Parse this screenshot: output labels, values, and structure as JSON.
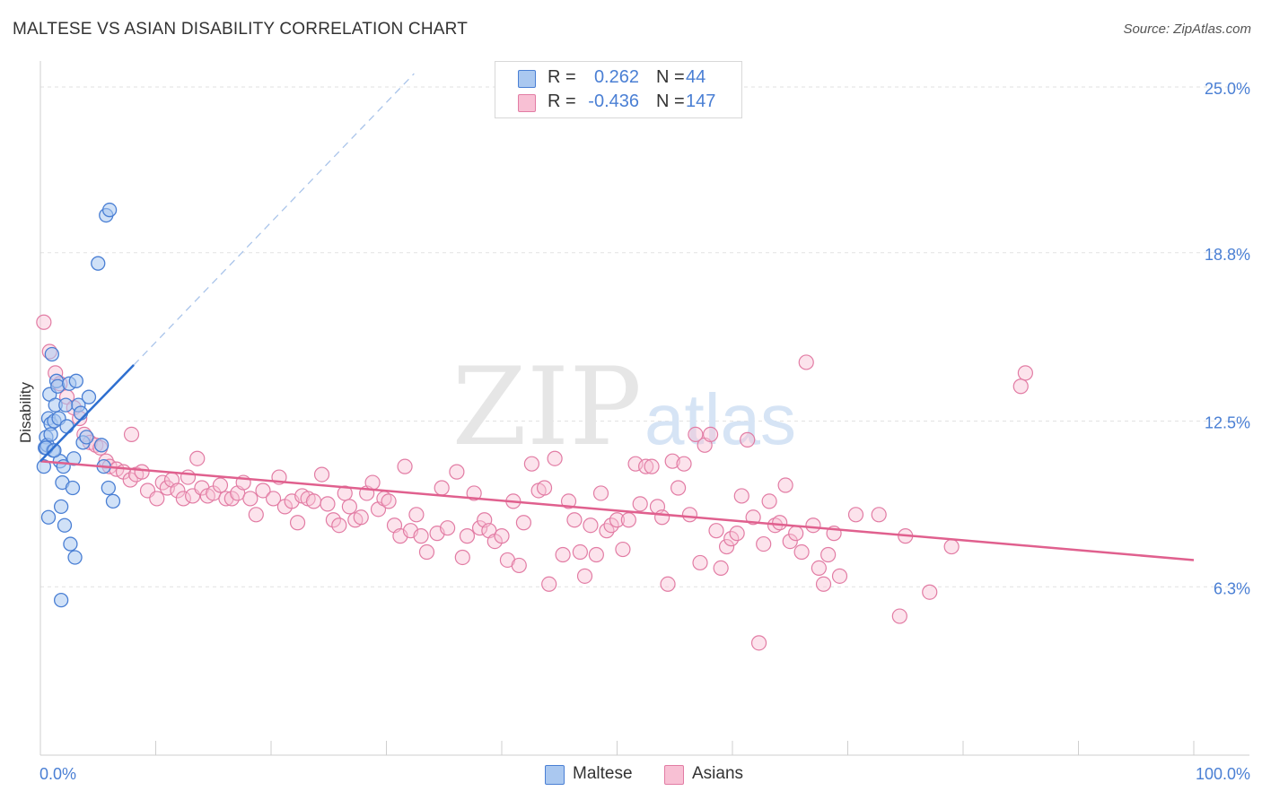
{
  "title": "MALTESE VS ASIAN DISABILITY CORRELATION CHART",
  "source": "Source: ZipAtlas.com",
  "watermark": {
    "zip": "ZIP",
    "atlas": "atlas"
  },
  "legend": {
    "rows": [
      {
        "r_label": "R =",
        "r_value": "0.262",
        "n_label": "N =",
        "n_value": "44",
        "color": "#aac8f0",
        "border": "#4a7fd4"
      },
      {
        "r_label": "R =",
        "r_value": "-0.436",
        "n_label": "N =",
        "n_value": "147",
        "color": "#f8c0d4",
        "border": "#e27ca4"
      }
    ]
  },
  "bottom_legend": {
    "maltese": "Maltese",
    "asians": "Asians"
  },
  "colors": {
    "maltese_fill": "#aac8f0",
    "maltese_stroke": "#4a7fd4",
    "asian_fill": "#f8c0d4",
    "asian_stroke": "#e27ca4",
    "maltese_line": "#2e6fd0",
    "asian_line": "#e0608e",
    "tick_text": "#4a7fd4"
  },
  "chart_data": {
    "type": "scatter",
    "title": "MALTESE VS ASIAN DISABILITY CORRELATION CHART",
    "xlabel": "",
    "ylabel": "Disability",
    "xlim": [
      0,
      100
    ],
    "ylim": [
      0,
      25.5
    ],
    "x_tick_labels": [
      "0.0%",
      "100.0%"
    ],
    "y_ticks": [
      {
        "value": 6.3,
        "label": "6.3%"
      },
      {
        "value": 12.5,
        "label": "12.5%"
      },
      {
        "value": 18.8,
        "label": "18.8%"
      },
      {
        "value": 25.0,
        "label": "25.0%"
      }
    ],
    "series": [
      {
        "name": "Maltese",
        "r": 0.262,
        "n": 44,
        "trend": {
          "x0": 0,
          "y0": 11.0,
          "x1": 8.1,
          "y1": 14.6,
          "dash_to_x": 32.4,
          "dash_to_y": 25.5
        },
        "points": [
          [
            0.3,
            10.8
          ],
          [
            0.4,
            11.5
          ],
          [
            0.5,
            11.9
          ],
          [
            0.6,
            11.6
          ],
          [
            0.7,
            12.6
          ],
          [
            0.8,
            13.5
          ],
          [
            0.9,
            12.4
          ],
          [
            1.0,
            15.0
          ],
          [
            1.1,
            11.4
          ],
          [
            1.2,
            12.5
          ],
          [
            1.3,
            13.1
          ],
          [
            1.4,
            14.0
          ],
          [
            1.5,
            13.8
          ],
          [
            1.6,
            12.6
          ],
          [
            1.7,
            11.0
          ],
          [
            1.8,
            9.3
          ],
          [
            1.9,
            10.2
          ],
          [
            2.0,
            10.8
          ],
          [
            2.1,
            8.6
          ],
          [
            2.2,
            13.1
          ],
          [
            2.3,
            12.3
          ],
          [
            2.5,
            13.9
          ],
          [
            2.6,
            7.9
          ],
          [
            2.8,
            10.0
          ],
          [
            2.9,
            11.1
          ],
          [
            3.0,
            7.4
          ],
          [
            3.1,
            14.0
          ],
          [
            3.3,
            13.1
          ],
          [
            3.5,
            12.8
          ],
          [
            3.7,
            11.7
          ],
          [
            4.0,
            11.9
          ],
          [
            4.2,
            13.4
          ],
          [
            5.0,
            18.4
          ],
          [
            5.3,
            11.6
          ],
          [
            5.5,
            10.8
          ],
          [
            5.7,
            20.2
          ],
          [
            5.9,
            10.0
          ],
          [
            6.0,
            20.4
          ],
          [
            6.3,
            9.5
          ],
          [
            0.5,
            11.5
          ],
          [
            0.9,
            12.0
          ],
          [
            1.2,
            11.4
          ],
          [
            1.8,
            5.8
          ],
          [
            0.7,
            8.9
          ]
        ]
      },
      {
        "name": "Asians",
        "r": -0.436,
        "n": 147,
        "trend": {
          "x0": 0,
          "y0": 11.0,
          "x1": 100,
          "y1": 7.3
        },
        "points": [
          [
            0.3,
            16.2
          ],
          [
            0.8,
            15.1
          ],
          [
            1.3,
            14.3
          ],
          [
            1.7,
            13.9
          ],
          [
            2.3,
            13.4
          ],
          [
            2.9,
            13.0
          ],
          [
            3.4,
            12.6
          ],
          [
            3.8,
            12.0
          ],
          [
            4.3,
            11.7
          ],
          [
            4.8,
            11.6
          ],
          [
            5.2,
            11.5
          ],
          [
            5.7,
            11.0
          ],
          [
            6.0,
            10.8
          ],
          [
            6.6,
            10.7
          ],
          [
            7.2,
            10.6
          ],
          [
            7.8,
            10.3
          ],
          [
            7.9,
            12.0
          ],
          [
            8.3,
            10.5
          ],
          [
            8.8,
            10.6
          ],
          [
            9.3,
            9.9
          ],
          [
            10.1,
            9.6
          ],
          [
            10.6,
            10.2
          ],
          [
            11.0,
            10.0
          ],
          [
            11.4,
            10.3
          ],
          [
            11.9,
            9.9
          ],
          [
            12.4,
            9.6
          ],
          [
            12.8,
            10.4
          ],
          [
            13.2,
            9.7
          ],
          [
            13.6,
            11.1
          ],
          [
            14.0,
            10.0
          ],
          [
            14.5,
            9.7
          ],
          [
            15.0,
            9.8
          ],
          [
            15.6,
            10.1
          ],
          [
            16.1,
            9.6
          ],
          [
            16.6,
            9.6
          ],
          [
            17.1,
            9.8
          ],
          [
            17.6,
            10.2
          ],
          [
            18.2,
            9.6
          ],
          [
            18.7,
            9.0
          ],
          [
            19.3,
            9.9
          ],
          [
            20.2,
            9.6
          ],
          [
            20.7,
            10.4
          ],
          [
            21.2,
            9.3
          ],
          [
            21.8,
            9.5
          ],
          [
            22.3,
            8.7
          ],
          [
            22.7,
            9.7
          ],
          [
            23.2,
            9.6
          ],
          [
            23.7,
            9.5
          ],
          [
            24.4,
            10.5
          ],
          [
            24.9,
            9.4
          ],
          [
            25.4,
            8.8
          ],
          [
            25.9,
            8.6
          ],
          [
            26.4,
            9.8
          ],
          [
            26.8,
            9.3
          ],
          [
            27.3,
            8.8
          ],
          [
            27.8,
            8.9
          ],
          [
            28.3,
            9.8
          ],
          [
            28.8,
            10.2
          ],
          [
            29.3,
            9.2
          ],
          [
            29.8,
            9.6
          ],
          [
            30.2,
            9.5
          ],
          [
            30.7,
            8.6
          ],
          [
            31.2,
            8.2
          ],
          [
            31.6,
            10.8
          ],
          [
            32.1,
            8.4
          ],
          [
            32.6,
            9.0
          ],
          [
            33.0,
            8.2
          ],
          [
            33.5,
            7.6
          ],
          [
            34.4,
            8.3
          ],
          [
            34.8,
            10.0
          ],
          [
            35.3,
            8.5
          ],
          [
            36.1,
            10.6
          ],
          [
            36.6,
            7.4
          ],
          [
            37.0,
            8.2
          ],
          [
            37.6,
            9.8
          ],
          [
            38.1,
            8.5
          ],
          [
            38.5,
            8.8
          ],
          [
            38.9,
            8.4
          ],
          [
            39.4,
            8.0
          ],
          [
            40.0,
            8.2
          ],
          [
            40.5,
            7.3
          ],
          [
            41.0,
            9.5
          ],
          [
            41.5,
            7.1
          ],
          [
            41.9,
            8.7
          ],
          [
            42.6,
            10.9
          ],
          [
            43.2,
            9.9
          ],
          [
            43.7,
            10.0
          ],
          [
            44.1,
            6.4
          ],
          [
            44.6,
            11.1
          ],
          [
            45.3,
            7.5
          ],
          [
            45.8,
            9.5
          ],
          [
            46.3,
            8.8
          ],
          [
            46.8,
            7.6
          ],
          [
            47.2,
            6.7
          ],
          [
            47.7,
            8.6
          ],
          [
            48.2,
            7.5
          ],
          [
            48.6,
            9.8
          ],
          [
            49.1,
            8.4
          ],
          [
            49.5,
            8.6
          ],
          [
            50.0,
            8.8
          ],
          [
            50.5,
            7.7
          ],
          [
            51.0,
            8.8
          ],
          [
            51.6,
            10.9
          ],
          [
            52.0,
            9.4
          ],
          [
            52.5,
            10.8
          ],
          [
            53.0,
            10.8
          ],
          [
            53.5,
            9.3
          ],
          [
            53.9,
            8.9
          ],
          [
            54.4,
            6.4
          ],
          [
            54.8,
            11.0
          ],
          [
            55.3,
            10.0
          ],
          [
            55.8,
            10.9
          ],
          [
            56.3,
            9.0
          ],
          [
            56.8,
            12.0
          ],
          [
            57.2,
            7.2
          ],
          [
            57.6,
            11.6
          ],
          [
            58.1,
            12.0
          ],
          [
            58.6,
            8.4
          ],
          [
            59.0,
            7.0
          ],
          [
            59.5,
            7.8
          ],
          [
            59.9,
            8.1
          ],
          [
            60.4,
            8.3
          ],
          [
            60.8,
            9.7
          ],
          [
            61.3,
            11.8
          ],
          [
            61.8,
            8.9
          ],
          [
            62.3,
            4.2
          ],
          [
            62.7,
            7.9
          ],
          [
            63.2,
            9.5
          ],
          [
            63.7,
            8.6
          ],
          [
            64.1,
            8.7
          ],
          [
            64.6,
            10.1
          ],
          [
            65.0,
            8.0
          ],
          [
            65.5,
            8.3
          ],
          [
            66.0,
            7.6
          ],
          [
            66.4,
            14.7
          ],
          [
            67.0,
            8.6
          ],
          [
            67.5,
            7.0
          ],
          [
            67.9,
            6.4
          ],
          [
            68.3,
            7.5
          ],
          [
            68.8,
            8.3
          ],
          [
            69.3,
            6.7
          ],
          [
            70.7,
            9.0
          ],
          [
            72.7,
            9.0
          ],
          [
            74.5,
            5.2
          ],
          [
            75.0,
            8.2
          ],
          [
            77.1,
            6.1
          ],
          [
            79.0,
            7.8
          ],
          [
            85.0,
            13.8
          ],
          [
            85.4,
            14.3
          ]
        ]
      }
    ]
  }
}
